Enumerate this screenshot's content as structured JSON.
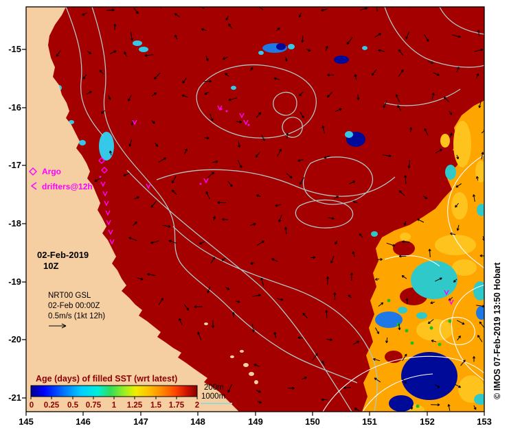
{
  "figure": {
    "axes": {
      "x_ticks": [
        "145",
        "146",
        "147",
        "148",
        "149",
        "150",
        "151",
        "152",
        "153"
      ],
      "y_ticks": [
        "-15",
        "-16",
        "-17",
        "-18",
        "-19",
        "-20",
        "-21"
      ]
    },
    "timestamp": {
      "date": "02-Feb-2019",
      "hour": "10Z"
    },
    "model_info": {
      "line1": "NRT00 GSL",
      "line2": "02-Feb 00:00Z",
      "line3": "0.5m/s (1kt 12h)"
    },
    "marker_legend": {
      "argo": "Argo",
      "drifters": "drifters@12h"
    },
    "colorbar": {
      "title": "Age (days) of filled SST (wrt latest)",
      "ticks": [
        "0",
        "0.25",
        "0.5",
        "0.75",
        "1",
        "1.25",
        "1.5",
        "1.75",
        "2"
      ]
    },
    "isobath_legend": {
      "shallow": "200m",
      "deep": "1000m"
    },
    "watermark": "© IMOS 07-Feb-2019 13:50 Hobart",
    "colors": {
      "land": "#F5CEA2",
      "age_max_red": "#A40000",
      "age_band_orange": "#FFA500",
      "marker_magenta": "#FF00FF",
      "contour_gray": "#AEC6C6"
    }
  },
  "chart_data": {
    "type": "heatmap",
    "title": "Age (days) of filled SST (wrt latest)",
    "x_axis": {
      "ticks": [
        145,
        146,
        147,
        148,
        149,
        150,
        151,
        152,
        153
      ]
    },
    "y_axis": {
      "ticks": [
        -15,
        -16,
        -17,
        -18,
        -19,
        -20,
        -21
      ]
    },
    "colorbar": {
      "range": [
        0,
        2
      ],
      "ticks": [
        0,
        0.25,
        0.5,
        0.75,
        1,
        1.25,
        1.5,
        1.75,
        2
      ]
    },
    "legend_entries": [
      "Argo",
      "drifters@12h",
      "200m",
      "1000m"
    ],
    "annotations": [
      "02-Feb-2019",
      "10Z",
      "NRT00 GSL",
      "02-Feb 00:00Z",
      "0.5m/s (1kt 12h)",
      "© IMOS 07-Feb-2019 13:50 Hobart"
    ],
    "summary": "Most of the mapped Coral Sea region has SST age near 2 days (dark red); younger ages (orange, yellow, cyan, blue, navy patches) occur along the eastern edge near 151.5-153E south of about 16.5S, with scattered young patches offshore and near the Queensland coast."
  }
}
